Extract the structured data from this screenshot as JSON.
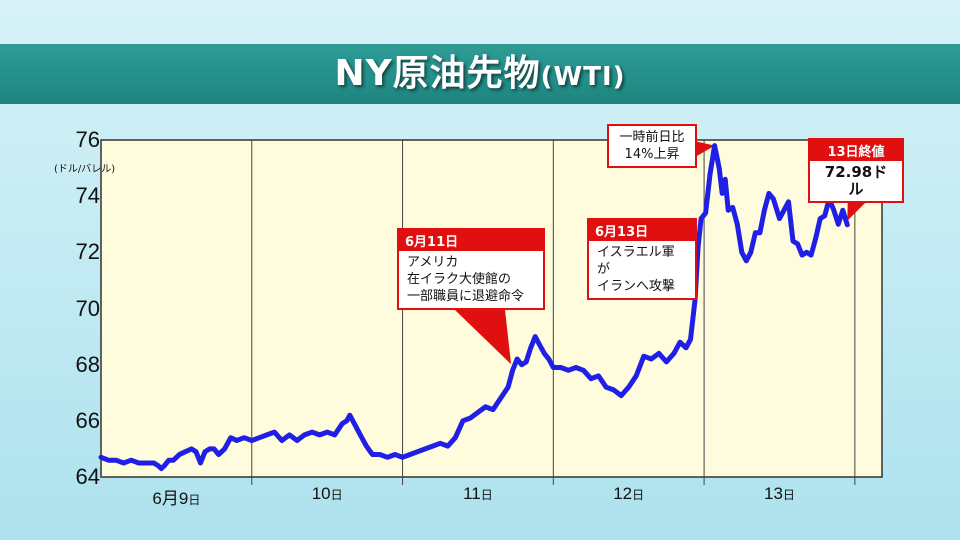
{
  "title": {
    "main": "NY原油先物",
    "sub": "(WTI)"
  },
  "colors": {
    "line": "#1f1fe6",
    "plot_bg": "#fefcdc",
    "callout_red": "#e01010",
    "title_bar": "#22908a"
  },
  "chart_data": {
    "type": "line",
    "title": "NY原油先物(WTI)",
    "ylabel": "(ドル/バレル)",
    "ylim": [
      64,
      76
    ],
    "yticks": [
      "76",
      "74",
      "72",
      "70",
      "68",
      "66",
      "64"
    ],
    "xticks": [
      {
        "label": "6月9",
        "suffix": "日"
      },
      {
        "label": "10",
        "suffix": "日"
      },
      {
        "label": "11",
        "suffix": "日"
      },
      {
        "label": "12",
        "suffix": "日"
      },
      {
        "label": "13",
        "suffix": "日"
      }
    ],
    "grid": "vertical",
    "x_range": [
      0,
      5.18
    ],
    "series": [
      {
        "points": [
          [
            0.0,
            64.7
          ],
          [
            0.05,
            64.6
          ],
          [
            0.1,
            64.6
          ],
          [
            0.15,
            64.5
          ],
          [
            0.2,
            64.6
          ],
          [
            0.25,
            64.5
          ],
          [
            0.3,
            64.5
          ],
          [
            0.35,
            64.5
          ],
          [
            0.38,
            64.4
          ],
          [
            0.4,
            64.3
          ],
          [
            0.42,
            64.4
          ],
          [
            0.45,
            64.6
          ],
          [
            0.48,
            64.6
          ],
          [
            0.52,
            64.8
          ],
          [
            0.56,
            64.9
          ],
          [
            0.6,
            65.0
          ],
          [
            0.63,
            64.9
          ],
          [
            0.66,
            64.5
          ],
          [
            0.69,
            64.9
          ],
          [
            0.72,
            65.0
          ],
          [
            0.75,
            65.0
          ],
          [
            0.78,
            64.8
          ],
          [
            0.82,
            65.0
          ],
          [
            0.86,
            65.4
          ],
          [
            0.9,
            65.3
          ],
          [
            0.95,
            65.4
          ],
          [
            1.0,
            65.3
          ],
          [
            1.05,
            65.4
          ],
          [
            1.1,
            65.5
          ],
          [
            1.15,
            65.6
          ],
          [
            1.2,
            65.3
          ],
          [
            1.25,
            65.5
          ],
          [
            1.3,
            65.3
          ],
          [
            1.35,
            65.5
          ],
          [
            1.4,
            65.6
          ],
          [
            1.45,
            65.5
          ],
          [
            1.5,
            65.6
          ],
          [
            1.55,
            65.5
          ],
          [
            1.6,
            65.9
          ],
          [
            1.63,
            66.0
          ],
          [
            1.65,
            66.2
          ],
          [
            1.68,
            65.9
          ],
          [
            1.72,
            65.5
          ],
          [
            1.76,
            65.1
          ],
          [
            1.8,
            64.8
          ],
          [
            1.85,
            64.8
          ],
          [
            1.9,
            64.7
          ],
          [
            1.95,
            64.8
          ],
          [
            2.0,
            64.7
          ],
          [
            2.05,
            64.8
          ],
          [
            2.1,
            64.9
          ],
          [
            2.15,
            65.0
          ],
          [
            2.2,
            65.1
          ],
          [
            2.25,
            65.2
          ],
          [
            2.3,
            65.1
          ],
          [
            2.35,
            65.4
          ],
          [
            2.4,
            66.0
          ],
          [
            2.45,
            66.1
          ],
          [
            2.5,
            66.3
          ],
          [
            2.55,
            66.5
          ],
          [
            2.6,
            66.4
          ],
          [
            2.65,
            66.8
          ],
          [
            2.7,
            67.2
          ],
          [
            2.73,
            67.8
          ],
          [
            2.76,
            68.2
          ],
          [
            2.79,
            68.0
          ],
          [
            2.82,
            68.1
          ],
          [
            2.85,
            68.6
          ],
          [
            2.88,
            69.0
          ],
          [
            2.91,
            68.7
          ],
          [
            2.94,
            68.4
          ],
          [
            2.97,
            68.2
          ],
          [
            3.0,
            67.9
          ],
          [
            3.05,
            67.9
          ],
          [
            3.1,
            67.8
          ],
          [
            3.15,
            67.9
          ],
          [
            3.2,
            67.8
          ],
          [
            3.25,
            67.5
          ],
          [
            3.3,
            67.6
          ],
          [
            3.35,
            67.2
          ],
          [
            3.4,
            67.1
          ],
          [
            3.45,
            66.9
          ],
          [
            3.5,
            67.2
          ],
          [
            3.55,
            67.6
          ],
          [
            3.6,
            68.3
          ],
          [
            3.65,
            68.2
          ],
          [
            3.7,
            68.4
          ],
          [
            3.75,
            68.1
          ],
          [
            3.8,
            68.4
          ],
          [
            3.84,
            68.8
          ],
          [
            3.88,
            68.6
          ],
          [
            3.91,
            68.9
          ],
          [
            3.94,
            70.3
          ],
          [
            3.96,
            72.2
          ],
          [
            3.98,
            73.2
          ],
          [
            4.01,
            73.4
          ],
          [
            4.04,
            74.8
          ],
          [
            4.07,
            75.8
          ],
          [
            4.1,
            75.0
          ],
          [
            4.12,
            74.1
          ],
          [
            4.14,
            74.6
          ],
          [
            4.16,
            73.5
          ],
          [
            4.19,
            73.6
          ],
          [
            4.22,
            73.0
          ],
          [
            4.25,
            72.0
          ],
          [
            4.28,
            71.7
          ],
          [
            4.31,
            72.0
          ],
          [
            4.34,
            72.7
          ],
          [
            4.37,
            72.7
          ],
          [
            4.4,
            73.5
          ],
          [
            4.43,
            74.1
          ],
          [
            4.46,
            73.9
          ],
          [
            4.5,
            73.2
          ],
          [
            4.53,
            73.5
          ],
          [
            4.56,
            73.8
          ],
          [
            4.59,
            72.4
          ],
          [
            4.62,
            72.3
          ],
          [
            4.65,
            71.9
          ],
          [
            4.68,
            72.0
          ],
          [
            4.71,
            71.9
          ],
          [
            4.74,
            72.5
          ],
          [
            4.77,
            73.2
          ],
          [
            4.8,
            73.3
          ],
          [
            4.83,
            73.9
          ],
          [
            4.86,
            73.5
          ],
          [
            4.89,
            73.0
          ],
          [
            4.92,
            73.5
          ],
          [
            4.95,
            72.98
          ]
        ]
      }
    ],
    "annotations": [
      {
        "id": "a1",
        "header": "6月11日",
        "lines": [
          "アメリカ",
          "在イラク大使館の",
          "一部職員に退避命令"
        ],
        "point_x": 2.72
      },
      {
        "id": "a2",
        "header": "6月13日",
        "lines": [
          "イスラエル軍が",
          "イランへ攻撃"
        ],
        "point_x": 3.93
      },
      {
        "id": "a3",
        "header": "",
        "lines": [
          "一時前日比",
          "14%上昇"
        ],
        "point_x": 4.07
      },
      {
        "id": "a4",
        "header": "13日終値",
        "lines": [
          "72.98ドル"
        ],
        "point_x": 4.95
      }
    ]
  }
}
